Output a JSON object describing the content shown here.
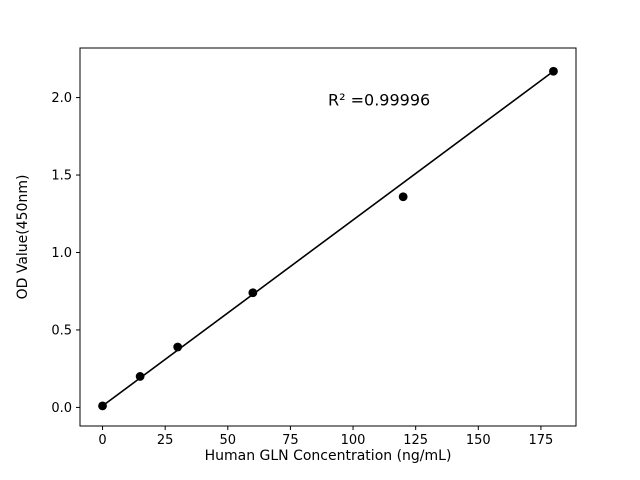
{
  "chart_data": {
    "type": "scatter",
    "title": "",
    "xlabel": "Human GLN Concentration (ng/mL)",
    "ylabel": "OD Value(450nm)",
    "x": [
      0,
      15,
      30,
      60,
      120,
      180
    ],
    "y": [
      0.01,
      0.2,
      0.39,
      0.74,
      1.36,
      2.17
    ],
    "trendline": {
      "x": [
        0,
        180
      ],
      "y": [
        0.01,
        2.17
      ]
    },
    "xticks": [
      "0",
      "25",
      "50",
      "75",
      "100",
      "125",
      "150",
      "175"
    ],
    "xtick_values": [
      0,
      25,
      50,
      75,
      100,
      125,
      150,
      175
    ],
    "yticks": [
      "0.0",
      "0.5",
      "1.0",
      "1.5",
      "2.0"
    ],
    "ytick_values": [
      0,
      0.5,
      1.0,
      1.5,
      2.0
    ],
    "xlim": [
      -9,
      189
    ],
    "ylim": [
      -0.12,
      2.32
    ],
    "annotation": {
      "text": "R² =0.99996",
      "x": 90,
      "y": 1.95
    },
    "marker_color": "#000000",
    "line_color": "#000000",
    "axis_color": "#000000",
    "background": "#ffffff",
    "grid": "off",
    "legend": "none"
  }
}
